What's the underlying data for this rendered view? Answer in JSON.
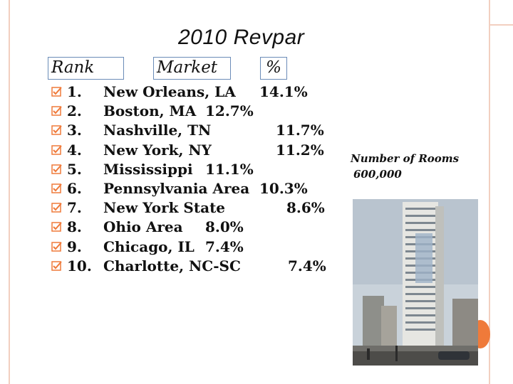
{
  "title": "2010 Revpar",
  "headers": {
    "rank": "Rank",
    "market": "Market",
    "percent": "%"
  },
  "rows": [
    {
      "rank": "1.",
      "market": "New Orleans, LA",
      "percent": "14.1%",
      "pct_offset": 219
    },
    {
      "rank": "2.",
      "market": "Boston, MA",
      "percent": "12.7%",
      "pct_offset": 143
    },
    {
      "rank": "3.",
      "market": "Nashville, TN",
      "percent": "11.7%",
      "pct_offset": 242
    },
    {
      "rank": "4.",
      "market": "New York, NY",
      "percent": "11.2%",
      "pct_offset": 242
    },
    {
      "rank": "5.",
      "market": "Mississippi",
      "percent": "11.1%",
      "pct_offset": 143
    },
    {
      "rank": "6.",
      "market": "Pennsylvania Area",
      "percent": "10.3%",
      "pct_offset": 219
    },
    {
      "rank": "7.",
      "market": "New York State",
      "percent": "8.6%",
      "pct_offset": 257
    },
    {
      "rank": "8.",
      "market": "Ohio Area",
      "percent": "8.0%",
      "pct_offset": 143
    },
    {
      "rank": "9.",
      "market": "Chicago, IL",
      "percent": "7.4%",
      "pct_offset": 143
    },
    {
      "rank": "10.",
      "market": "Charlotte, NC-SC",
      "percent": "7.4%",
      "pct_offset": 259
    }
  ],
  "rooms": {
    "label": "Number of Rooms",
    "value": "600,000"
  },
  "colors": {
    "accent": "#ef7a3a",
    "frame": "#f2cfc0",
    "box_border": "#6b8cb8"
  },
  "icons": {
    "bullet": "checkbox-bullet-icon",
    "photo": "hotel-tower-photo"
  }
}
